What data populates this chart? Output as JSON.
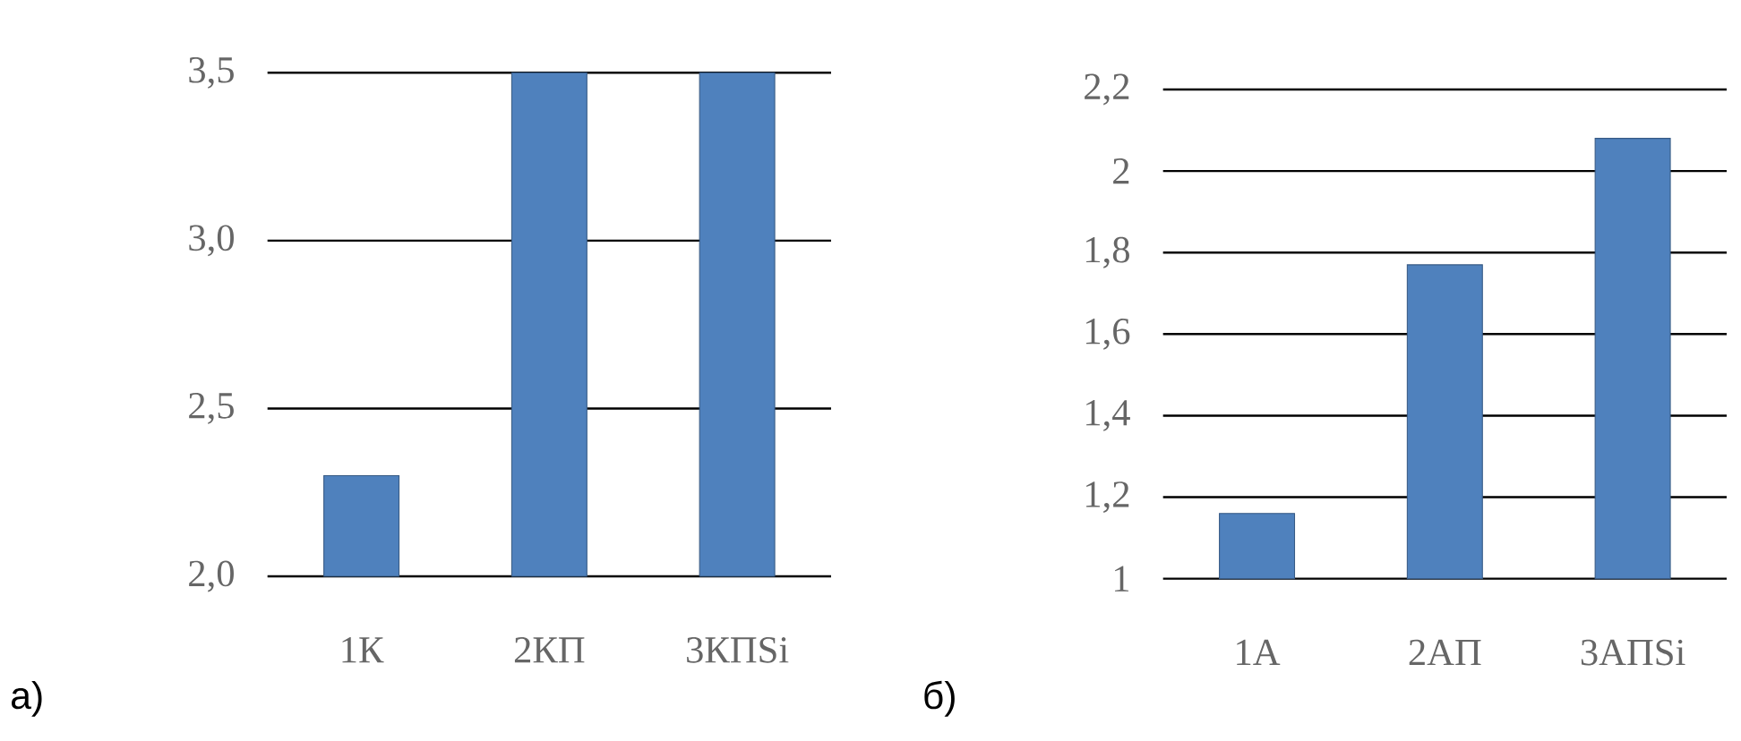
{
  "chart_data": [
    {
      "type": "bar",
      "categories": [
        "1К",
        "2КП",
        "3КПSi"
      ],
      "values": [
        2.3,
        3.5,
        3.5
      ],
      "color": "#4f81bd",
      "ylim": [
        2.0,
        3.5
      ],
      "yticks": [
        {
          "value": 2.0,
          "label": "2,0"
        },
        {
          "value": 2.5,
          "label": "2,5"
        },
        {
          "value": 3.0,
          "label": "3,0"
        },
        {
          "value": 3.5,
          "label": "3,5"
        }
      ],
      "grid": "y",
      "annotations": [
        "а)"
      ]
    },
    {
      "type": "bar",
      "categories": [
        "1А",
        "2АП",
        "3АПSi"
      ],
      "values": [
        1.16,
        1.77,
        2.08
      ],
      "color": "#4f81bd",
      "ylim": [
        1,
        2.2
      ],
      "yticks": [
        1,
        {
          "value": 1.2,
          "label": "1,2"
        },
        {
          "value": 1.4,
          "label": "1,4"
        },
        {
          "value": 1.6,
          "label": "1,6"
        },
        {
          "value": 1.8,
          "label": "1,8"
        },
        2,
        {
          "value": 2.2,
          "label": "2,2"
        }
      ],
      "grid": "y",
      "annotations": [
        "б)"
      ]
    }
  ]
}
